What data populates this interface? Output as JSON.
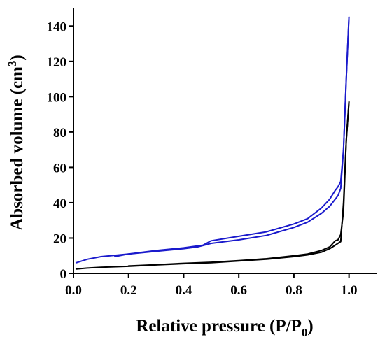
{
  "chart_data": {
    "type": "line",
    "title": "",
    "xlabel": {
      "prefix": "Relative pressure (P/P",
      "subscript": "0",
      "suffix": ")"
    },
    "ylabel": {
      "prefix": "Absorbed volume (cm",
      "superscript": "3",
      "suffix": ")"
    },
    "xlim": [
      0.0,
      1.1
    ],
    "ylim": [
      0,
      150
    ],
    "xticks": [
      "0.0",
      "0.2",
      "0.4",
      "0.6",
      "0.8",
      "1.0"
    ],
    "xtick_values": [
      0.0,
      0.2,
      0.4,
      0.6,
      0.8,
      1.0
    ],
    "yticks": [
      "0",
      "20",
      "40",
      "60",
      "80",
      "100",
      "120",
      "140"
    ],
    "ytick_values": [
      0,
      20,
      40,
      60,
      80,
      100,
      120,
      140
    ],
    "grid": false,
    "legend": "none",
    "series": [
      {
        "color": "#1a1acc",
        "branch": "adsorption",
        "x": [
          0.01,
          0.05,
          0.1,
          0.2,
          0.3,
          0.4,
          0.45,
          0.5,
          0.6,
          0.7,
          0.8,
          0.85,
          0.9,
          0.93,
          0.95,
          0.96,
          0.97,
          0.98,
          0.99,
          1.0
        ],
        "y": [
          6,
          8,
          9.5,
          11,
          12.5,
          14,
          15,
          17,
          19,
          21.5,
          26,
          29,
          34,
          38,
          42,
          44,
          48,
          70,
          110,
          145
        ]
      },
      {
        "color": "#1a1acc",
        "branch": "desorption",
        "x": [
          1.0,
          0.99,
          0.98,
          0.97,
          0.96,
          0.95,
          0.93,
          0.9,
          0.85,
          0.8,
          0.7,
          0.6,
          0.5,
          0.47,
          0.4,
          0.3,
          0.2,
          0.15
        ],
        "y": [
          145,
          110,
          70,
          52,
          49,
          47,
          42,
          37,
          31,
          28,
          23.5,
          21,
          18.5,
          16,
          14.5,
          13,
          11,
          9.5
        ]
      },
      {
        "color": "#000000",
        "branch": "adsorption",
        "x": [
          0.01,
          0.05,
          0.1,
          0.2,
          0.3,
          0.4,
          0.5,
          0.6,
          0.7,
          0.8,
          0.85,
          0.9,
          0.93,
          0.95,
          0.96,
          0.97,
          0.98,
          0.99,
          1.0
        ],
        "y": [
          2.5,
          3,
          3.5,
          4,
          4.8,
          5.5,
          6,
          7,
          8,
          9.5,
          10.5,
          12,
          14,
          16,
          17,
          18,
          40,
          75,
          97
        ]
      },
      {
        "color": "#000000",
        "branch": "desorption",
        "x": [
          1.0,
          0.99,
          0.98,
          0.97,
          0.96,
          0.95,
          0.93,
          0.9,
          0.85,
          0.8,
          0.7,
          0.6,
          0.5,
          0.4,
          0.3,
          0.2
        ],
        "y": [
          97,
          75,
          35,
          22,
          19,
          18.5,
          15,
          13,
          11,
          10,
          8.3,
          7.2,
          6.3,
          5.7,
          4.9,
          4.2
        ]
      }
    ]
  }
}
